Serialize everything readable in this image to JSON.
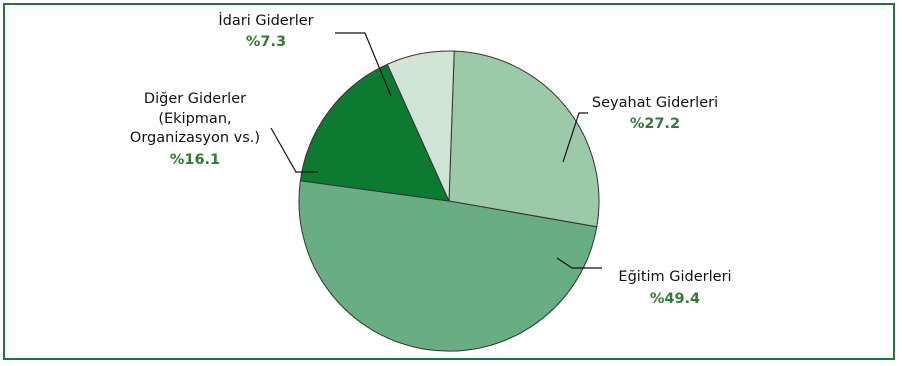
{
  "chart_data": {
    "type": "pie",
    "slices": [
      {
        "label_lines": [
          "Seyahat Giderleri"
        ],
        "value_label": "%27.2",
        "value": 27.2,
        "color": "#9ccaa8"
      },
      {
        "label_lines": [
          "Eğitim Giderleri"
        ],
        "value_label": "%49.4",
        "value": 49.4,
        "color": "#69ae82"
      },
      {
        "label_lines": [
          "Diğer Giderler",
          "(Ekipman,",
          "Organizasyon vs.)"
        ],
        "value_label": "%16.1",
        "value": 16.1,
        "color": "#0d7a31"
      },
      {
        "label_lines": [
          "İdari Giderler"
        ],
        "value_label": "%7.3",
        "value": 7.3,
        "color": "#cee4d5"
      }
    ]
  },
  "colors": {
    "border": "#1a7a35",
    "value_text": "#2e7d32",
    "label_text": "#111111"
  }
}
